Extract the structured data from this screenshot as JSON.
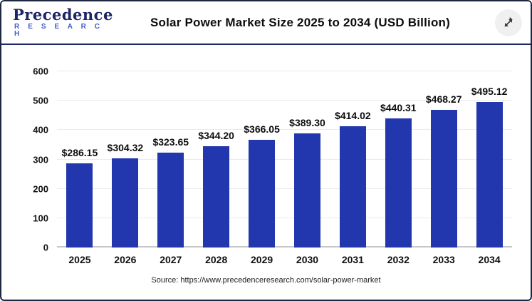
{
  "header": {
    "logo": {
      "line1": "Precedence",
      "line2": "R E S E A R C H"
    },
    "title": "Solar Power Market Size 2025 to 2034 (USD Billion)",
    "expand_icon": "diagonal-resize-arrow"
  },
  "chart_data": {
    "type": "bar",
    "title": "Solar Power Market Size 2025 to 2034 (USD Billion)",
    "categories": [
      "2025",
      "2026",
      "2027",
      "2028",
      "2029",
      "2030",
      "2031",
      "2032",
      "2033",
      "2034"
    ],
    "values": [
      286.15,
      304.32,
      323.65,
      344.2,
      366.05,
      389.3,
      414.02,
      440.31,
      468.27,
      495.12
    ],
    "value_labels": [
      "$286.15",
      "$304.32",
      "$323.65",
      "$344.20",
      "$366.05",
      "$389.30",
      "$414.02",
      "$440.31",
      "$468.27",
      "$495.12"
    ],
    "xlabel": "",
    "ylabel": "",
    "ylim": [
      0,
      600
    ],
    "yticks": [
      0,
      100,
      200,
      300,
      400,
      500,
      600
    ],
    "grid": true,
    "legend": "none",
    "bar_color": "#2236ad"
  },
  "footer": {
    "source": "Source: https://www.precedenceresearch.com/solar-power-market"
  },
  "colors": {
    "bar_blue": "#2236ad",
    "divider_navy": "#1e2a66",
    "logo_navy": "#1c2566",
    "logo_blue": "#3f5ccb",
    "gridline": "#ebebeb",
    "baseline": "#c7c7c7"
  }
}
